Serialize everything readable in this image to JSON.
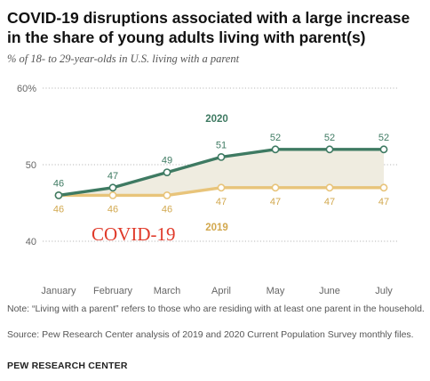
{
  "header": {
    "title": "COVID-19 disruptions associated with a large increase in the share of young adults living with parent(s)",
    "subtitle": "% of 18- to 29-year-olds in U.S. living with a parent"
  },
  "footer": {
    "note": "Note: “Living with a parent” refers to those who are residing with at least one parent in the household.",
    "source": "Source: Pew Research Center analysis of 2019 and 2020 Current Population Survey monthly files.",
    "org": "PEW RESEARCH CENTER"
  },
  "overlay_text": "COVID-19",
  "chart_data": {
    "type": "line",
    "title": "COVID-19 disruptions associated with a large increase in the share of young adults living with parent(s)",
    "subtitle": "% of 18- to 29-year-olds in U.S. living with a parent",
    "categories": [
      "January",
      "February",
      "March",
      "April",
      "May",
      "June",
      "July"
    ],
    "series": [
      {
        "name": "2020",
        "values": [
          46,
          47,
          49,
          51,
          52,
          52,
          52
        ],
        "color": "#3e7a62"
      },
      {
        "name": "2019",
        "values": [
          46,
          46,
          46,
          47,
          47,
          47,
          47
        ],
        "color": "#e8c47a"
      }
    ],
    "yticks": [
      "40",
      "50",
      "60%"
    ],
    "ylim": [
      40,
      60
    ],
    "grid": true,
    "fill_between": "#efece0",
    "label_colors": {
      "2020": "#3e7a62",
      "2019": "#d2a84e"
    }
  }
}
